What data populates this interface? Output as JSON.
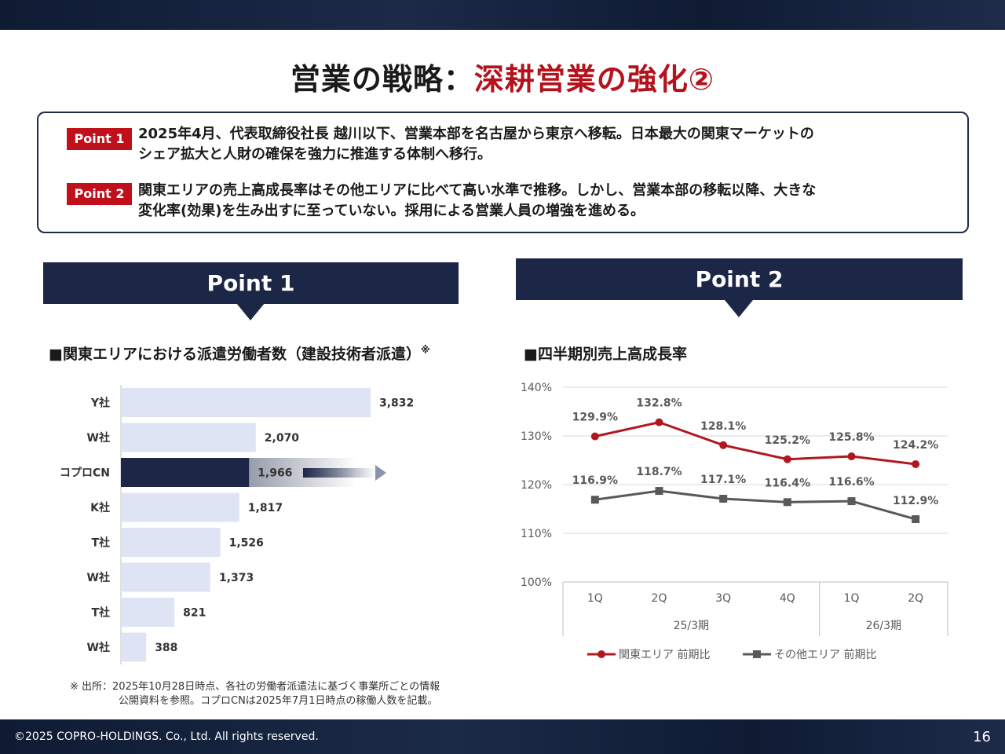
{
  "header": {
    "title_main": "営業の戦略：",
    "title_accent": "深耕営業の強化②"
  },
  "points": {
    "p1_badge": "Point 1",
    "p1_line1": "2025年4月、代表取締役社長 越川以下、営業本部を名古屋から東京へ移転。日本最大の関東マーケットの",
    "p1_line2": "シェア拡大と人財の確保を強力に推進する体制へ移行。",
    "p2_badge": "Point 2",
    "p2_line1": "関東エリアの売上高成長率はその他エリアに比べて高い水準で推移。しかし、営業本部の移転以降、大きな",
    "p2_line2": "変化率(効果)を生み出すに至っていない。採用による営業人員の増強を進める。"
  },
  "panels": {
    "left_label": "Point 1",
    "right_label": "Point 2",
    "left_subtitle": "■関東エリアにおける派遣労働者数（建設技術者派遣）",
    "left_subtitle_mark": "※",
    "right_subtitle": "■四半期別売上高成長率"
  },
  "note": {
    "line1": "※ 出所：2025年10月28日時点、各社の労働者派遣法に基づく事業所ごとの情報",
    "line2": "公開資料を参照。コプロCNは2025年7月1日時点の稼働人数を記載。"
  },
  "footer": {
    "copyright": "©2025 COPRO-HOLDINGS. Co., Ltd. All rights reserved.",
    "page": "16"
  },
  "colors": {
    "navy": "#1c2747",
    "red": "#b4121c",
    "bar": "#dfe4f4",
    "line_kanto": "#b01820",
    "line_other": "#595959"
  },
  "chart_data": [
    {
      "type": "bar",
      "orientation": "horizontal",
      "title": "関東エリアにおける派遣労働者数（建設技術者派遣）",
      "categories": [
        "Y社",
        "W社",
        "コプロCN",
        "K社",
        "T社",
        "W社",
        "T社",
        "W社"
      ],
      "values": [
        3832,
        2070,
        1966,
        1817,
        1526,
        1373,
        821,
        388
      ],
      "value_labels": [
        "3,832",
        "2,070",
        "1,966",
        "1,817",
        "1,526",
        "1,373",
        "821",
        "388"
      ],
      "highlight_index": 2,
      "xlim": [
        0,
        3832
      ]
    },
    {
      "type": "line",
      "title": "四半期別売上高成長率",
      "categories": [
        "1Q",
        "2Q",
        "3Q",
        "4Q",
        "1Q",
        "2Q"
      ],
      "groups": [
        {
          "label": "25/3期",
          "count": 4
        },
        {
          "label": "26/3期",
          "count": 2
        }
      ],
      "ylim": [
        100,
        140
      ],
      "yticks": [
        "100%",
        "110%",
        "120%",
        "130%",
        "140%"
      ],
      "series": [
        {
          "name": "関東エリア 前期比",
          "values": [
            129.9,
            132.8,
            128.1,
            125.2,
            125.8,
            124.2
          ],
          "labels": [
            "129.9%",
            "132.8%",
            "128.1%",
            "125.2%",
            "125.8%",
            "124.2%"
          ]
        },
        {
          "name": "その他エリア 前期比",
          "values": [
            116.9,
            118.7,
            117.1,
            116.4,
            116.6,
            112.9
          ],
          "labels": [
            "116.9%",
            "118.7%",
            "117.1%",
            "116.4%",
            "116.6%",
            "112.9%"
          ]
        }
      ],
      "legend": "bottom"
    }
  ]
}
